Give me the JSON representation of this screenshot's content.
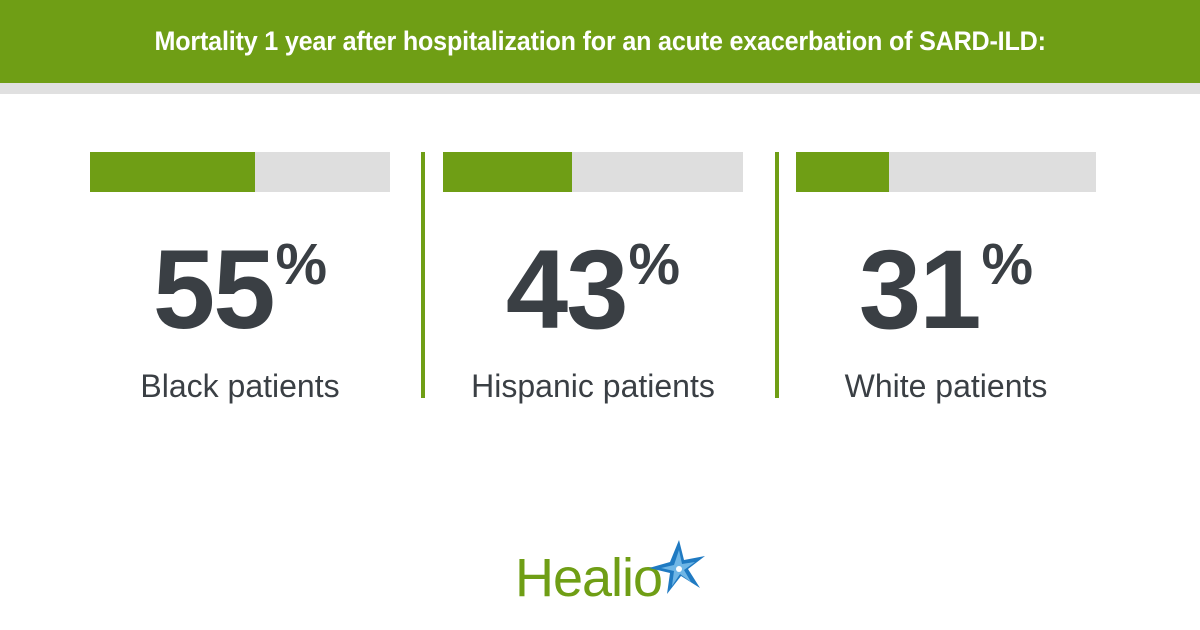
{
  "header": {
    "title": "Mortality 1 year after hospitalization for an acute exacerbation of SARD-ILD:"
  },
  "chart_data": {
    "type": "bar",
    "title": "Mortality 1 year after hospitalization for an acute exacerbation of SARD-ILD:",
    "categories": [
      "Black patients",
      "Hispanic patients",
      "White patients"
    ],
    "values": [
      55,
      43,
      31
    ],
    "unit": "%",
    "ylim": [
      0,
      100
    ]
  },
  "stats": [
    {
      "value": "55",
      "unit": "%",
      "label": "Black patients",
      "fraction": 0.55
    },
    {
      "value": "43",
      "unit": "%",
      "label": "Hispanic patients",
      "fraction": 0.43
    },
    {
      "value": "31",
      "unit": "%",
      "label": "White patients",
      "fraction": 0.31
    }
  ],
  "logo": {
    "text": "Healio",
    "icon": "healio-star-icon"
  },
  "colors": {
    "accent": "#6f9e15",
    "track": "#dedede",
    "text": "#3a3f44"
  }
}
